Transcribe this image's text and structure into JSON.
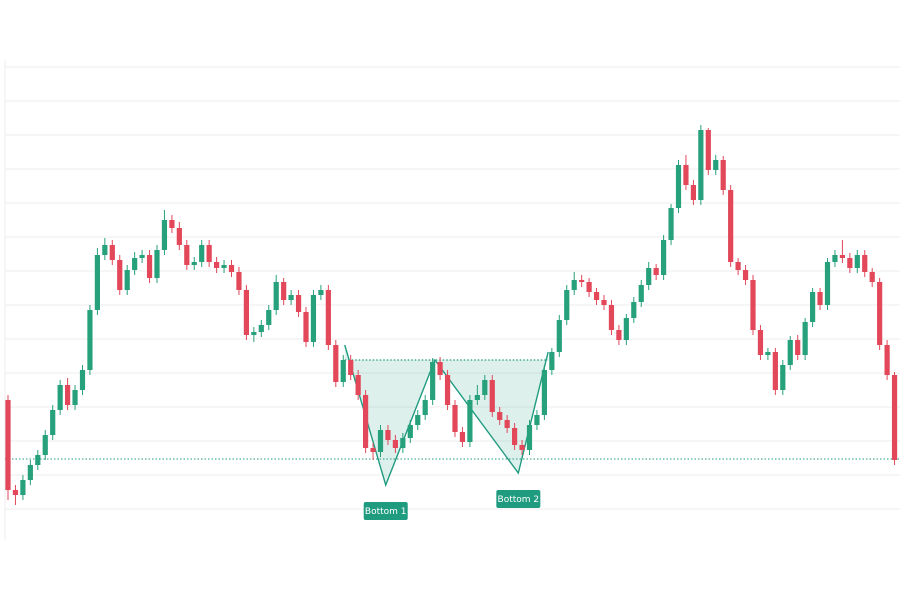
{
  "chart_data": {
    "type": "candlestick",
    "ylim": [
      0,
      480
    ],
    "up_color": "#26a17b",
    "down_color": "#e2475a",
    "open": [
      140,
      50,
      45,
      60,
      75,
      85,
      105,
      130,
      155,
      135,
      150,
      170,
      230,
      285,
      295,
      280,
      250,
      270,
      282,
      285,
      262,
      290,
      320,
      312,
      295,
      275,
      278,
      295,
      278,
      272,
      275,
      268,
      250,
      205,
      208,
      215,
      230,
      258,
      240,
      245,
      228,
      198,
      245,
      250,
      195,
      158,
      180,
      165,
      145,
      92,
      88,
      110,
      100,
      92,
      102,
      115,
      125,
      140,
      178,
      165,
      135,
      108,
      98,
      140,
      145,
      160,
      128,
      120,
      112,
      95,
      90,
      115,
      125,
      170,
      188,
      220,
      250,
      260,
      258,
      248,
      240,
      235,
      210,
      200,
      222,
      238,
      255,
      272,
      265,
      300,
      332,
      375,
      355,
      340,
      410,
      370,
      380,
      350,
      278,
      270,
      260,
      210,
      185,
      188,
      150,
      175,
      200,
      185,
      218,
      248,
      235,
      278,
      285,
      282,
      272,
      285,
      268,
      258,
      195,
      165
    ],
    "high": [
      145,
      55,
      65,
      80,
      90,
      110,
      135,
      160,
      162,
      155,
      175,
      235,
      292,
      302,
      300,
      285,
      275,
      288,
      290,
      290,
      295,
      330,
      325,
      318,
      300,
      283,
      300,
      300,
      283,
      280,
      280,
      273,
      255,
      213,
      220,
      235,
      265,
      262,
      250,
      250,
      233,
      250,
      255,
      255,
      200,
      185,
      185,
      170,
      150,
      97,
      115,
      115,
      105,
      107,
      120,
      130,
      145,
      182,
      183,
      170,
      140,
      113,
      145,
      155,
      165,
      165,
      133,
      125,
      117,
      100,
      120,
      130,
      175,
      192,
      225,
      255,
      268,
      265,
      262,
      252,
      245,
      240,
      215,
      226,
      243,
      260,
      278,
      276,
      305,
      336,
      380,
      385,
      360,
      415,
      412,
      385,
      384,
      355,
      282,
      275,
      265,
      215,
      192,
      192,
      180,
      204,
      205,
      222,
      252,
      252,
      282,
      290,
      300,
      287,
      290,
      290,
      272,
      262,
      200,
      168
    ],
    "low": [
      40,
      35,
      40,
      55,
      70,
      80,
      100,
      125,
      130,
      130,
      145,
      165,
      225,
      280,
      275,
      245,
      245,
      265,
      277,
      257,
      257,
      285,
      307,
      290,
      270,
      270,
      273,
      273,
      267,
      267,
      263,
      245,
      200,
      198,
      203,
      210,
      225,
      235,
      235,
      223,
      193,
      193,
      240,
      190,
      153,
      153,
      160,
      140,
      87,
      80,
      83,
      95,
      87,
      87,
      97,
      110,
      120,
      135,
      160,
      130,
      103,
      93,
      93,
      135,
      140,
      123,
      115,
      107,
      90,
      85,
      85,
      110,
      120,
      165,
      183,
      215,
      245,
      253,
      243,
      235,
      230,
      205,
      195,
      195,
      217,
      233,
      250,
      260,
      260,
      295,
      327,
      350,
      335,
      335,
      365,
      365,
      345,
      273,
      265,
      255,
      205,
      180,
      180,
      145,
      145,
      170,
      180,
      180,
      213,
      230,
      230,
      273,
      277,
      267,
      267,
      263,
      253,
      190,
      160,
      75
    ],
    "close": [
      50,
      45,
      60,
      75,
      85,
      105,
      130,
      155,
      135,
      150,
      170,
      230,
      285,
      295,
      280,
      250,
      270,
      282,
      285,
      262,
      290,
      320,
      312,
      295,
      275,
      278,
      295,
      278,
      272,
      275,
      268,
      250,
      205,
      208,
      215,
      230,
      258,
      240,
      245,
      228,
      198,
      245,
      250,
      195,
      158,
      180,
      165,
      145,
      92,
      88,
      110,
      100,
      92,
      102,
      115,
      125,
      140,
      178,
      165,
      135,
      108,
      98,
      140,
      145,
      160,
      128,
      120,
      112,
      95,
      90,
      115,
      125,
      170,
      188,
      220,
      250,
      260,
      258,
      248,
      240,
      235,
      210,
      200,
      222,
      238,
      255,
      272,
      265,
      300,
      332,
      375,
      355,
      340,
      410,
      370,
      380,
      350,
      278,
      270,
      260,
      210,
      185,
      188,
      150,
      175,
      200,
      185,
      218,
      248,
      235,
      278,
      285,
      282,
      272,
      285,
      268,
      258,
      195,
      165,
      80
    ],
    "pattern": {
      "color": "#1f9b80",
      "x": [
        45.2,
        50.7,
        57.3,
        68.5,
        72.5
      ],
      "y": [
        195,
        55,
        180,
        67,
        188
      ],
      "neckline": 180,
      "support": 81,
      "labels": [
        "Bottom 1",
        "Bottom 2"
      ]
    }
  }
}
